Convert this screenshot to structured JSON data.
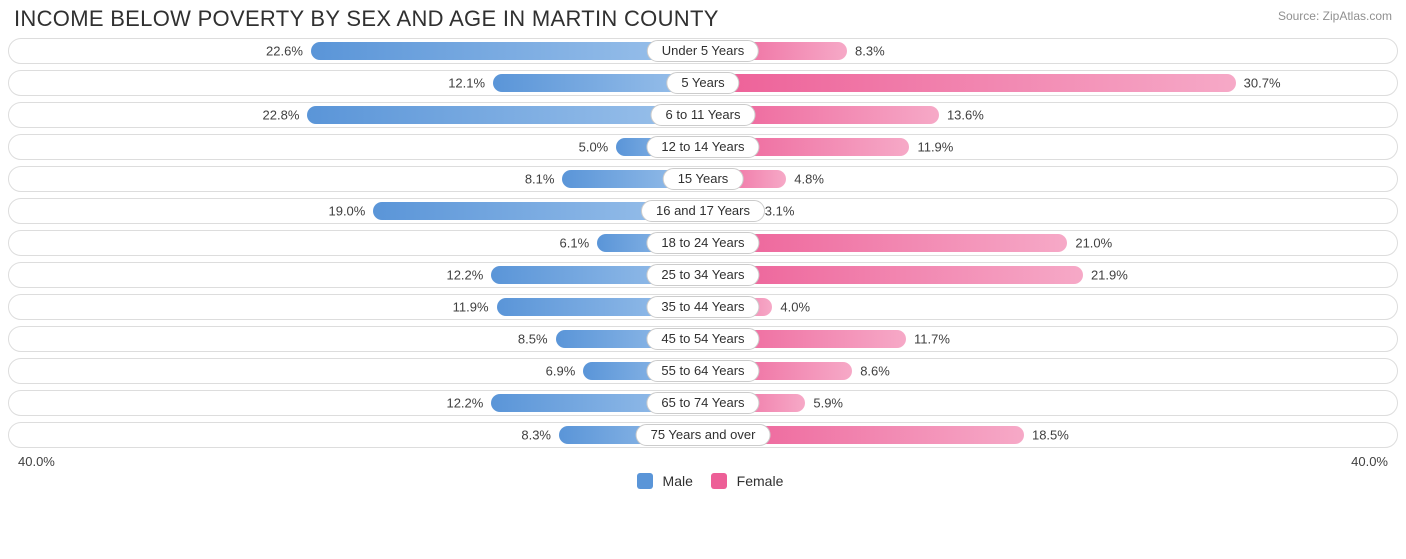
{
  "title": "INCOME BELOW POVERTY BY SEX AND AGE IN MARTIN COUNTY",
  "source": "Source: ZipAtlas.com",
  "axis_max": 40.0,
  "axis_label_left": "40.0%",
  "axis_label_right": "40.0%",
  "colors": {
    "male_start": "#5a95d8",
    "male_end": "#9cc2eb",
    "female_start": "#ed5f97",
    "female_end": "#f6a9c7",
    "track_border": "#dddddd",
    "text": "#303030"
  },
  "legend": {
    "male_label": "Male",
    "female_label": "Female"
  },
  "rows": [
    {
      "category": "Under 5 Years",
      "male": 22.6,
      "female": 8.3,
      "male_label": "22.6%",
      "female_label": "8.3%"
    },
    {
      "category": "5 Years",
      "male": 12.1,
      "female": 30.7,
      "male_label": "12.1%",
      "female_label": "30.7%"
    },
    {
      "category": "6 to 11 Years",
      "male": 22.8,
      "female": 13.6,
      "male_label": "22.8%",
      "female_label": "13.6%"
    },
    {
      "category": "12 to 14 Years",
      "male": 5.0,
      "female": 11.9,
      "male_label": "5.0%",
      "female_label": "11.9%"
    },
    {
      "category": "15 Years",
      "male": 8.1,
      "female": 4.8,
      "male_label": "8.1%",
      "female_label": "4.8%"
    },
    {
      "category": "16 and 17 Years",
      "male": 19.0,
      "female": 3.1,
      "male_label": "19.0%",
      "female_label": "3.1%"
    },
    {
      "category": "18 to 24 Years",
      "male": 6.1,
      "female": 21.0,
      "male_label": "6.1%",
      "female_label": "21.0%"
    },
    {
      "category": "25 to 34 Years",
      "male": 12.2,
      "female": 21.9,
      "male_label": "12.2%",
      "female_label": "21.9%"
    },
    {
      "category": "35 to 44 Years",
      "male": 11.9,
      "female": 4.0,
      "male_label": "11.9%",
      "female_label": "4.0%"
    },
    {
      "category": "45 to 54 Years",
      "male": 8.5,
      "female": 11.7,
      "male_label": "8.5%",
      "female_label": "11.7%"
    },
    {
      "category": "55 to 64 Years",
      "male": 6.9,
      "female": 8.6,
      "male_label": "6.9%",
      "female_label": "8.6%"
    },
    {
      "category": "65 to 74 Years",
      "male": 12.2,
      "female": 5.9,
      "male_label": "12.2%",
      "female_label": "5.9%"
    },
    {
      "category": "75 Years and over",
      "male": 8.3,
      "female": 18.5,
      "male_label": "8.3%",
      "female_label": "18.5%"
    }
  ]
}
